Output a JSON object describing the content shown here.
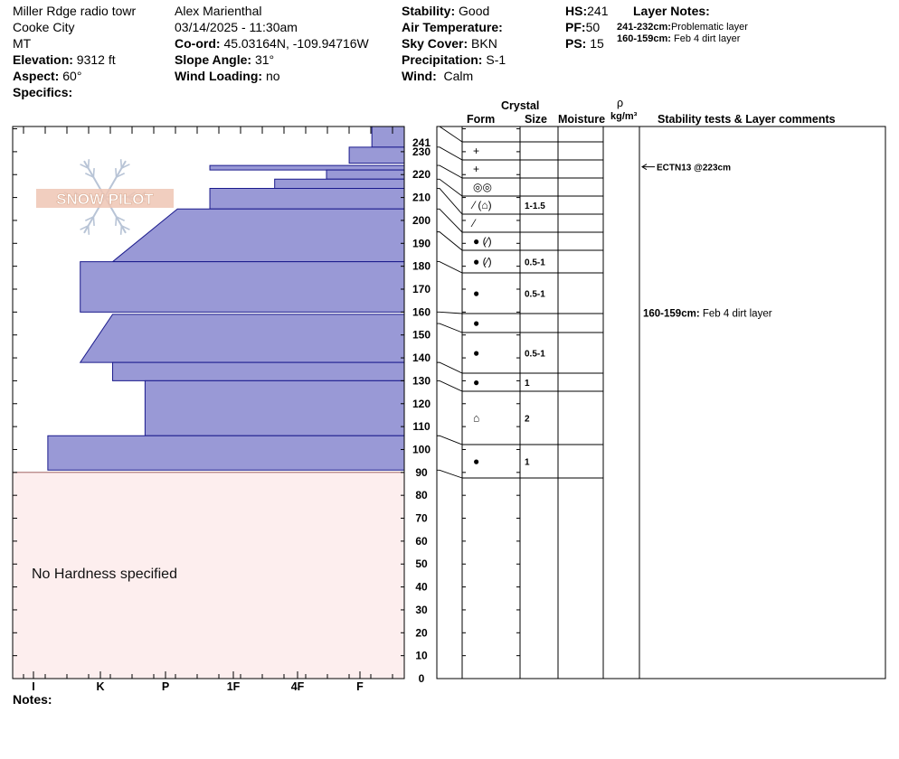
{
  "site": {
    "location": "Miller Rdge radio towr",
    "city": "Cooke City",
    "state": "MT",
    "elevation_label": "Elevation:",
    "elevation": "9312 ft",
    "aspect_label": "Aspect:",
    "aspect": "60°",
    "specifics_label": "Specifics:"
  },
  "observer": {
    "name": "Alex Marienthal",
    "datetime": "03/14/2025 - 11:30am",
    "coord_label": "Co-ord:",
    "coord": "45.03164N, -109.94716W",
    "slope_label": "Slope Angle:",
    "slope": "31°",
    "wind_loading_label": "Wind Loading:",
    "wind_loading": "no"
  },
  "conditions": {
    "stability_label": "Stability:",
    "stability": "Good",
    "air_temp_label": "Air Temperature:",
    "sky_label": "Sky Cover:",
    "sky": "BKN",
    "precip_label": "Precipitation:",
    "precip": "S-1",
    "wind_label": "Wind:",
    "wind": "Calm"
  },
  "depths": {
    "hs_label": "HS:",
    "hs": "241",
    "pf_label": "PF:",
    "pf": "50",
    "ps_label": "PS:",
    "ps": "15"
  },
  "layer_notes": {
    "title": "Layer Notes:",
    "items": [
      {
        "range": "241-232cm:",
        "text": "Problematic layer"
      },
      {
        "range": "160-159cm:",
        "text": "Feb 4 dirt layer"
      }
    ]
  },
  "column_headers": {
    "crystal": "Crystal",
    "form": "Form",
    "size": "Size",
    "moisture": "Moisture",
    "rho": "ρ",
    "density_unit": "kg/m³",
    "comments": "Stability tests & Layer comments"
  },
  "notes_label": "Notes:",
  "logo_text": "SNOW PILOT",
  "chart_data": {
    "type": "bar",
    "orientation": "horizontal",
    "ylim": [
      0,
      241
    ],
    "yticks": [
      0,
      10,
      20,
      30,
      40,
      50,
      60,
      70,
      80,
      90,
      100,
      110,
      120,
      130,
      140,
      150,
      160,
      170,
      180,
      190,
      200,
      210,
      220,
      230
    ],
    "top_tick": "241",
    "hardness_scale": [
      "I",
      "K",
      "P",
      "1F",
      "4F",
      "F"
    ],
    "no_hardness_text": "No Hardness specified",
    "no_hardness_range_cm": [
      0,
      90
    ],
    "hardness_profile": [
      {
        "top": 241,
        "bottom": 232,
        "hardness_top": 0.5,
        "hardness_bottom": 0.5
      },
      {
        "top": 232,
        "bottom": 225,
        "hardness_top": 0.85,
        "hardness_bottom": 0.85
      },
      {
        "top": 224,
        "bottom": 222,
        "hardness_top": 3.0,
        "hardness_bottom": 3.0
      },
      {
        "top": 222,
        "bottom": 218,
        "hardness_top": 1.2,
        "hardness_bottom": 1.2
      },
      {
        "top": 218,
        "bottom": 214,
        "hardness_top": 2.0,
        "hardness_bottom": 2.0
      },
      {
        "top": 214,
        "bottom": 205,
        "hardness_top": 3.0,
        "hardness_bottom": 3.0
      },
      {
        "top": 205,
        "bottom": 182,
        "hardness_top": 3.5,
        "hardness_bottom": 4.5
      },
      {
        "top": 182,
        "bottom": 160,
        "hardness_top": 5.0,
        "hardness_bottom": 5.0
      },
      {
        "top": 159,
        "bottom": 138,
        "hardness_top": 4.5,
        "hardness_bottom": 5.0
      },
      {
        "top": 138,
        "bottom": 130,
        "hardness_top": 4.5,
        "hardness_bottom": 4.5
      },
      {
        "top": 130,
        "bottom": 106,
        "hardness_top": 4.0,
        "hardness_bottom": 4.0
      },
      {
        "top": 106,
        "bottom": 91,
        "hardness_top": 5.5,
        "hardness_bottom": 5.5
      }
    ],
    "layers": [
      {
        "top": 241,
        "bottom": 232,
        "form": "+",
        "size": ""
      },
      {
        "top": 232,
        "bottom": 224,
        "form": "+",
        "size": ""
      },
      {
        "top": 224,
        "bottom": 218,
        "form": "◎◎",
        "size": ""
      },
      {
        "top": 218,
        "bottom": 214,
        "form": "⁄ (⌂)",
        "size": "1-1.5"
      },
      {
        "top": 214,
        "bottom": 205,
        "form": "⁄",
        "size": ""
      },
      {
        "top": 205,
        "bottom": 195,
        "form": "● (⁄)",
        "size": ""
      },
      {
        "top": 195,
        "bottom": 182,
        "form": "● (⁄)",
        "size": "0.5-1"
      },
      {
        "top": 182,
        "bottom": 160,
        "form": "●",
        "size": "0.5-1"
      },
      {
        "top": 160,
        "bottom": 155,
        "form": "●",
        "size": ""
      },
      {
        "top": 155,
        "bottom": 138,
        "form": "●",
        "size": "0.5-1"
      },
      {
        "top": 138,
        "bottom": 130,
        "form": "●",
        "size": "1"
      },
      {
        "top": 130,
        "bottom": 106,
        "form": "⌂",
        "size": "2"
      },
      {
        "top": 106,
        "bottom": 91,
        "form": "●",
        "size": "1"
      }
    ],
    "annotations": [
      {
        "depth_cm": 223,
        "text": "ECTN13 @223cm",
        "arrow": true
      },
      {
        "depth_cm": 159.5,
        "label": "160-159cm:",
        "text": "Feb 4 dirt layer"
      }
    ]
  }
}
